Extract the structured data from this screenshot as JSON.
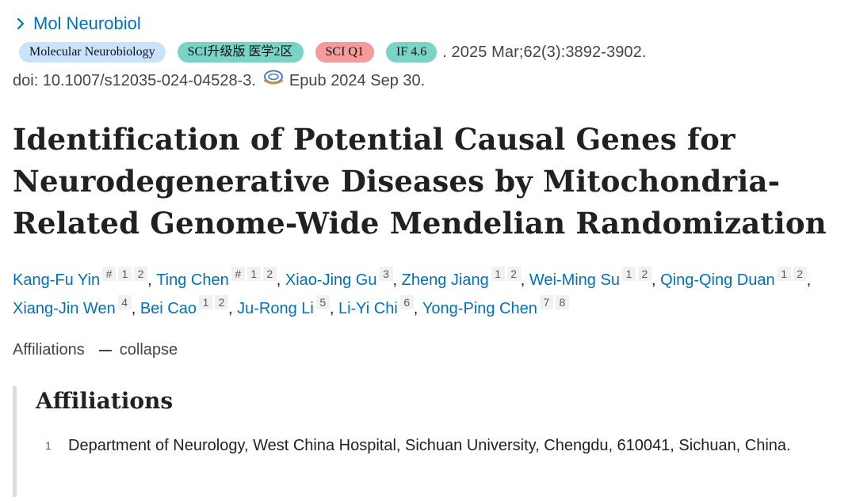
{
  "header": {
    "journal_abbrev": "Mol Neurobiol",
    "badges": {
      "journal": "Molecular Neurobiology",
      "sci_level": "SCI升级版 医学2区",
      "sci_quartile": "SCI Q1",
      "impact_factor": "IF 4.6"
    },
    "citation": ". 2025 Mar;62(3):3892-3902.",
    "doi": "doi: 10.1007/s12035-024-04528-3.",
    "epub": "Epub 2024 Sep 30."
  },
  "article": {
    "title": "Identification of Potential Causal Genes for Neurodegenerative Diseases by Mitochondria-Related Genome-Wide Mendelian Randomization"
  },
  "authors": [
    {
      "name": "Kang-Fu Yin",
      "marks": [
        "#",
        "1",
        "2"
      ]
    },
    {
      "name": "Ting Chen",
      "marks": [
        "#",
        "1",
        "2"
      ]
    },
    {
      "name": "Xiao-Jing Gu",
      "marks": [
        "3"
      ]
    },
    {
      "name": "Zheng Jiang",
      "marks": [
        "1",
        "2"
      ]
    },
    {
      "name": "Wei-Ming Su",
      "marks": [
        "1",
        "2"
      ]
    },
    {
      "name": "Qing-Qing Duan",
      "marks": [
        "1",
        "2"
      ]
    },
    {
      "name": "Xiang-Jin Wen",
      "marks": [
        "4"
      ]
    },
    {
      "name": "Bei Cao",
      "marks": [
        "1",
        "2"
      ]
    },
    {
      "name": "Ju-Rong Li",
      "marks": [
        "5"
      ]
    },
    {
      "name": "Li-Yi Chi",
      "marks": [
        "6"
      ]
    },
    {
      "name": "Yong-Ping Chen",
      "marks": [
        "7",
        "8"
      ]
    }
  ],
  "affiliations": {
    "toggle_label": "Affiliations",
    "toggle_action": "collapse",
    "heading": "Affiliations",
    "items": [
      {
        "num": "1",
        "text": "Department of Neurology, West China Hospital, Sichuan University, Chengdu, 610041, Sichuan, China."
      }
    ]
  },
  "colors": {
    "link": "#0071bc",
    "badge_journal": "#c9e3fb",
    "badge_sci": "#79d3c6",
    "badge_q1": "#f49b9b",
    "badge_if": "#79d3c6"
  },
  "icons": {
    "journal_link": "chevron-right-icon",
    "doi": "free-pmc-article-icon"
  }
}
